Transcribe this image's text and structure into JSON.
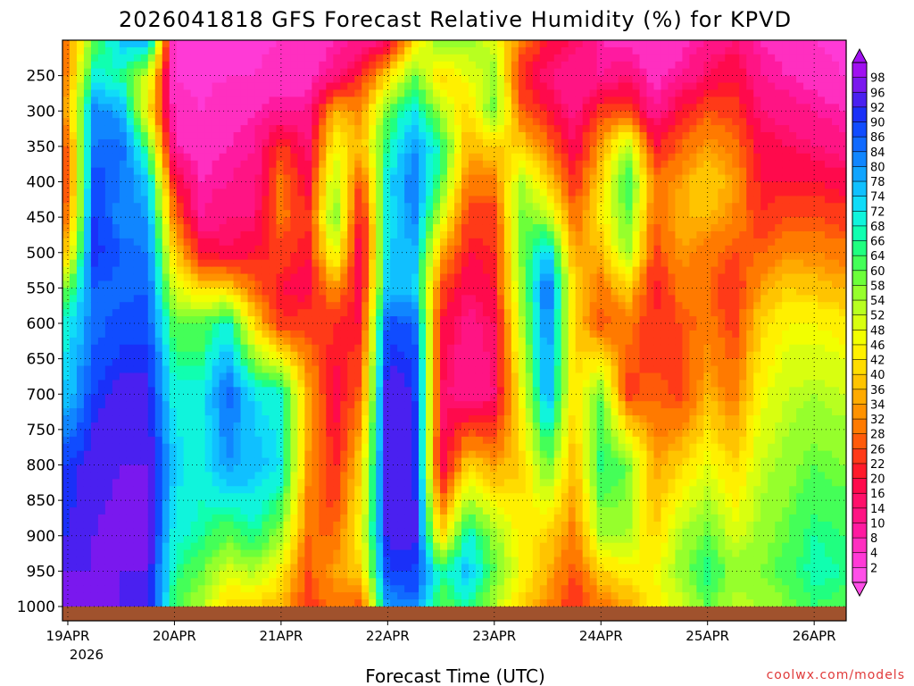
{
  "chart_data": {
    "type": "heatmap",
    "title": "2026041818 GFS Forecast Relative Humidity (%) for KPVD",
    "xlabel": "Forecast Time (UTC)",
    "year_label": "2026",
    "x_ticks": [
      "19APR",
      "20APR",
      "21APR",
      "22APR",
      "23APR",
      "24APR",
      "25APR",
      "26APR"
    ],
    "y_ticks": [
      250,
      300,
      350,
      400,
      450,
      500,
      550,
      600,
      650,
      700,
      750,
      800,
      850,
      900,
      950,
      1000
    ],
    "y_range_hPa": [
      200,
      1000
    ],
    "x_range_days_from_19APR": [
      -0.05,
      7.3
    ],
    "grid": true,
    "colorbar_levels": [
      2,
      4,
      8,
      10,
      14,
      16,
      20,
      22,
      26,
      28,
      32,
      34,
      36,
      40,
      42,
      46,
      48,
      52,
      54,
      58,
      60,
      64,
      66,
      68,
      72,
      74,
      78,
      80,
      84,
      86,
      90,
      92,
      96,
      98
    ],
    "colorbar_colors": [
      "#ff4fe8",
      "#ff3ad6",
      "#ff2fc0",
      "#ff1aa0",
      "#ff1484",
      "#ff106a",
      "#ff0a4c",
      "#ff1a2a",
      "#ff3a18",
      "#ff5a0a",
      "#ff7a00",
      "#ff9200",
      "#ffaa00",
      "#ffc400",
      "#ffdc00",
      "#fff000",
      "#f2ff00",
      "#d8ff10",
      "#b8ff20",
      "#96ff2c",
      "#6cff3a",
      "#44ff58",
      "#20ff80",
      "#10ffb0",
      "#10f4dc",
      "#10dcf8",
      "#10c0ff",
      "#10a4ff",
      "#1086ff",
      "#106aff",
      "#104cff",
      "#1a30f8",
      "#4a20f0",
      "#7a18ee",
      "#a010f0"
    ],
    "below_ground_color": "#a0522d",
    "columns": [
      {
        "t": 0.0,
        "rh": [
          30,
          32,
          36,
          28,
          26,
          30,
          40,
          60,
          70,
          75,
          90,
          92,
          96,
          97
        ]
      },
      {
        "t": 0.25,
        "rh": [
          60,
          70,
          82,
          84,
          88,
          90,
          92,
          86,
          84,
          90,
          95,
          96,
          96,
          97
        ]
      },
      {
        "t": 0.5,
        "rh": [
          75,
          66,
          78,
          86,
          84,
          82,
          86,
          84,
          88,
          94,
          96,
          97,
          96,
          96
        ]
      },
      {
        "t": 0.75,
        "rh": [
          80,
          50,
          44,
          62,
          76,
          80,
          84,
          86,
          88,
          94,
          96,
          97,
          96,
          95
        ]
      },
      {
        "t": 1.0,
        "rh": [
          3,
          4,
          6,
          8,
          20,
          30,
          40,
          50,
          60,
          70,
          74,
          70,
          66,
          62
        ]
      },
      {
        "t": 1.25,
        "rh": [
          2,
          3,
          4,
          6,
          8,
          10,
          20,
          40,
          60,
          70,
          70,
          66,
          60,
          54
        ]
      },
      {
        "t": 1.5,
        "rh": [
          3,
          4,
          6,
          8,
          10,
          14,
          16,
          40,
          70,
          86,
          80,
          60,
          50,
          40
        ]
      },
      {
        "t": 1.75,
        "rh": [
          3,
          4,
          8,
          10,
          12,
          14,
          20,
          28,
          40,
          72,
          76,
          66,
          54,
          40
        ]
      },
      {
        "t": 2.0,
        "rh": [
          4,
          6,
          10,
          24,
          30,
          30,
          24,
          20,
          22,
          70,
          72,
          56,
          44,
          36
        ]
      },
      {
        "t": 2.25,
        "rh": [
          4,
          6,
          10,
          14,
          18,
          22,
          20,
          18,
          24,
          36,
          34,
          28,
          26,
          24
        ]
      },
      {
        "t": 2.5,
        "rh": [
          8,
          12,
          36,
          46,
          54,
          60,
          50,
          34,
          22,
          18,
          20,
          28,
          34,
          30
        ]
      },
      {
        "t": 2.75,
        "rh": [
          10,
          22,
          32,
          36,
          24,
          18,
          14,
          16,
          20,
          28,
          40,
          46,
          40,
          26
        ]
      },
      {
        "t": 3.0,
        "rh": [
          14,
          40,
          60,
          66,
          72,
          70,
          74,
          76,
          88,
          96,
          96,
          94,
          90,
          80
        ]
      },
      {
        "t": 3.25,
        "rh": [
          40,
          60,
          72,
          80,
          84,
          82,
          78,
          74,
          86,
          92,
          94,
          94,
          90,
          84
        ]
      },
      {
        "t": 3.5,
        "rh": [
          60,
          40,
          54,
          66,
          62,
          50,
          36,
          26,
          20,
          16,
          14,
          40,
          66,
          60
        ]
      },
      {
        "t": 3.75,
        "rh": [
          56,
          48,
          40,
          36,
          30,
          24,
          20,
          16,
          12,
          10,
          40,
          70,
          76,
          66
        ]
      },
      {
        "t": 4.0,
        "rh": [
          50,
          56,
          60,
          40,
          30,
          24,
          22,
          20,
          16,
          14,
          34,
          56,
          60,
          54
        ]
      },
      {
        "t": 4.25,
        "rh": [
          30,
          22,
          28,
          40,
          54,
          60,
          58,
          56,
          52,
          46,
          40,
          44,
          46,
          40
        ]
      },
      {
        "t": 4.5,
        "rh": [
          20,
          14,
          20,
          30,
          40,
          54,
          76,
          86,
          84,
          80,
          60,
          40,
          36,
          32
        ]
      },
      {
        "t": 4.75,
        "rh": [
          16,
          10,
          12,
          16,
          22,
          28,
          34,
          40,
          40,
          40,
          36,
          30,
          26,
          22
        ]
      },
      {
        "t": 5.0,
        "rh": [
          8,
          10,
          24,
          34,
          40,
          44,
          36,
          30,
          26,
          60,
          66,
          54,
          40,
          30
        ]
      },
      {
        "t": 5.25,
        "rh": [
          6,
          14,
          26,
          54,
          66,
          60,
          56,
          40,
          30,
          24,
          60,
          54,
          44,
          34
        ]
      },
      {
        "t": 5.5,
        "rh": [
          4,
          6,
          10,
          20,
          30,
          28,
          24,
          20,
          22,
          28,
          34,
          40,
          46,
          44
        ]
      },
      {
        "t": 5.75,
        "rh": [
          6,
          10,
          20,
          28,
          34,
          36,
          34,
          30,
          26,
          24,
          40,
          54,
          56,
          50
        ]
      },
      {
        "t": 6.0,
        "rh": [
          10,
          16,
          26,
          34,
          40,
          36,
          30,
          28,
          30,
          36,
          48,
          60,
          66,
          60
        ]
      },
      {
        "t": 6.25,
        "rh": [
          14,
          20,
          24,
          30,
          34,
          32,
          26,
          22,
          24,
          30,
          40,
          50,
          56,
          52
        ]
      },
      {
        "t": 6.5,
        "rh": [
          8,
          10,
          14,
          18,
          20,
          22,
          28,
          34,
          40,
          46,
          52,
          56,
          58,
          54
        ]
      },
      {
        "t": 6.75,
        "rh": [
          6,
          8,
          12,
          16,
          20,
          26,
          32,
          40,
          46,
          52,
          56,
          60,
          62,
          58
        ]
      },
      {
        "t": 7.0,
        "rh": [
          4,
          6,
          10,
          14,
          20,
          26,
          32,
          38,
          46,
          54,
          60,
          66,
          68,
          64
        ]
      },
      {
        "t": 7.25,
        "rh": [
          3,
          4,
          8,
          12,
          18,
          24,
          30,
          36,
          44,
          52,
          58,
          64,
          66,
          62
        ]
      }
    ],
    "column_levels_hPa": [
      200,
      250,
      300,
      350,
      400,
      450,
      500,
      550,
      600,
      700,
      800,
      900,
      950,
      1000
    ]
  },
  "credit": "coolwx.com/models"
}
